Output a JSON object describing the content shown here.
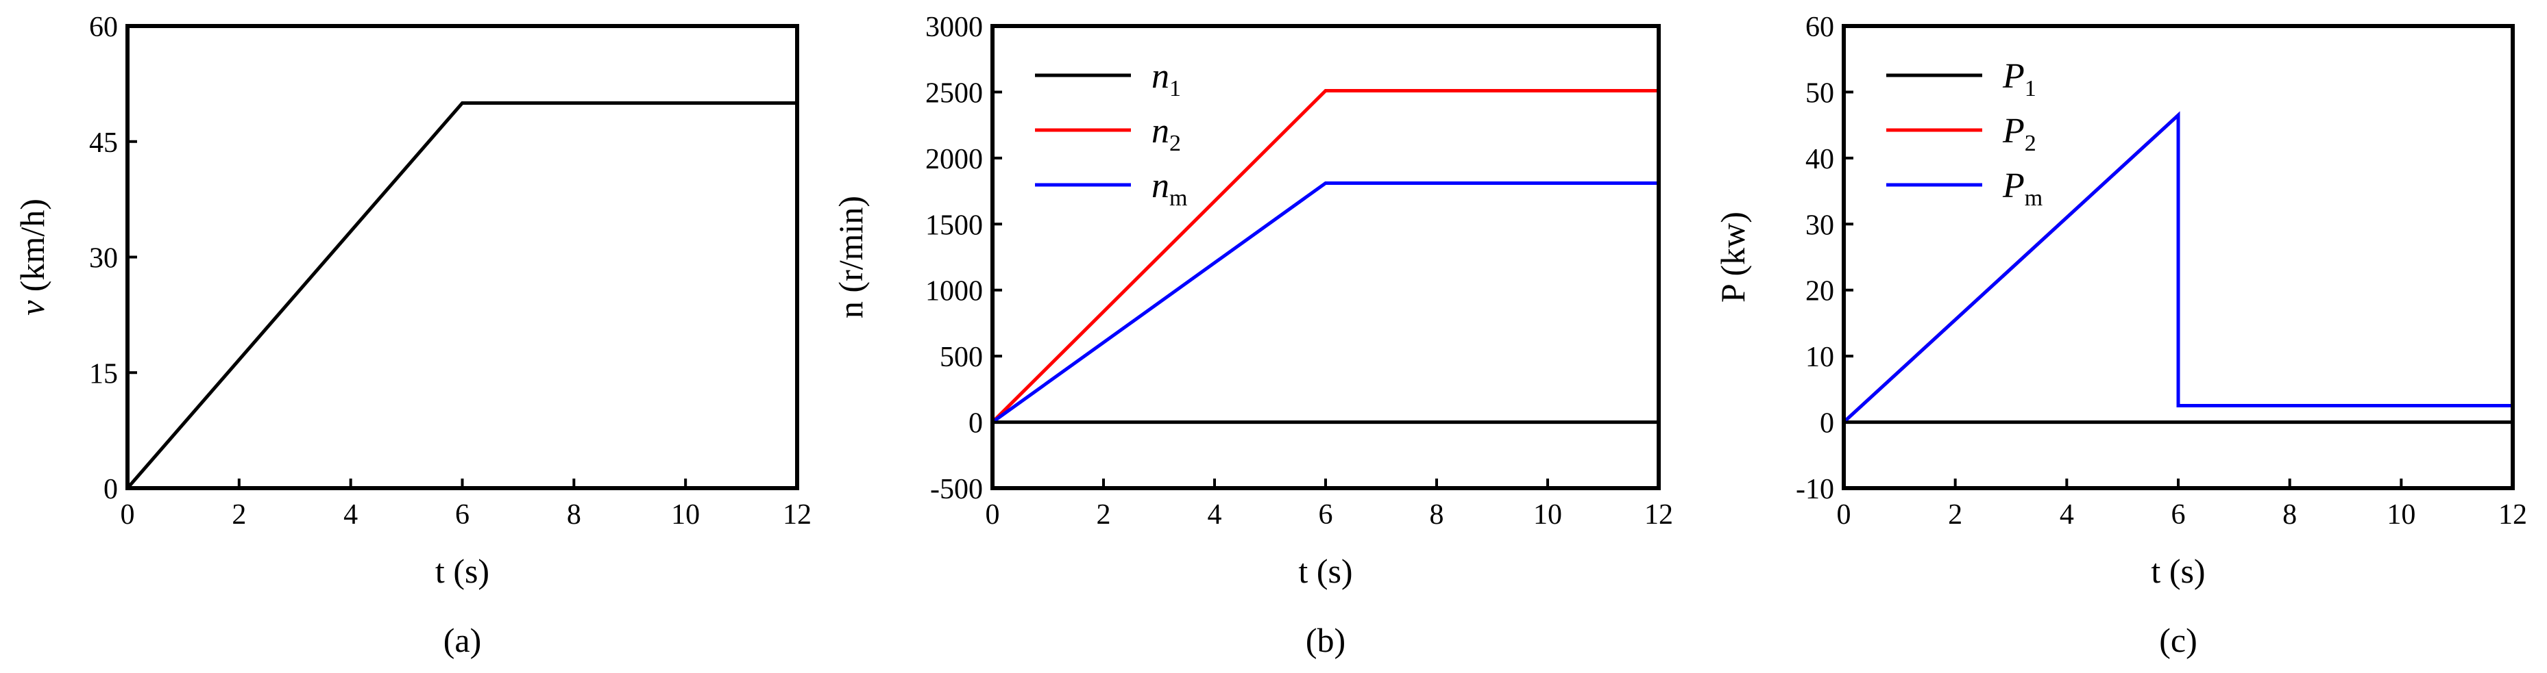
{
  "chart_data": [
    {
      "type": "line",
      "panel_label": "(a)",
      "xlabel": "t (s)",
      "ylabel_var": "v",
      "ylabel_unit": " (km/h)",
      "xlim": [
        0,
        12
      ],
      "ylim": [
        0,
        60
      ],
      "xticks": [
        0,
        2,
        4,
        6,
        8,
        10,
        12
      ],
      "yticks": [
        0,
        15,
        30,
        45,
        60
      ],
      "legend": "none",
      "series": [
        {
          "color": "#000000",
          "x": [
            0,
            6,
            12
          ],
          "y": [
            0,
            50,
            50
          ]
        }
      ]
    },
    {
      "type": "line",
      "panel_label": "(b)",
      "xlabel": "t (s)",
      "ylabel": "n (r/min)",
      "xlim": [
        0,
        12
      ],
      "ylim": [
        -500,
        3000
      ],
      "xticks": [
        0,
        2,
        4,
        6,
        8,
        10,
        12
      ],
      "yticks": [
        -500,
        0,
        500,
        1000,
        1500,
        2000,
        2500,
        3000
      ],
      "legend": "top-left",
      "series": [
        {
          "name": "n",
          "sub": "1",
          "color": "#000000",
          "x": [
            0,
            12
          ],
          "y": [
            0,
            0
          ]
        },
        {
          "name": "n",
          "sub": "2",
          "color": "#ff0000",
          "x": [
            0,
            6,
            12
          ],
          "y": [
            0,
            2510,
            2510
          ]
        },
        {
          "name": "n",
          "sub": "m",
          "color": "#0000ff",
          "x": [
            0,
            6,
            12
          ],
          "y": [
            0,
            1810,
            1810
          ]
        }
      ]
    },
    {
      "type": "line",
      "panel_label": "(c)",
      "xlabel": "t (s)",
      "ylabel": "P (kw)",
      "xlim": [
        0,
        12
      ],
      "ylim": [
        -10,
        60
      ],
      "xticks": [
        0,
        2,
        4,
        6,
        8,
        10,
        12
      ],
      "yticks": [
        -10,
        0,
        10,
        20,
        30,
        40,
        50,
        60
      ],
      "legend": "top-left",
      "series": [
        {
          "name": "P",
          "sub": "1",
          "color": "#000000",
          "x": [
            0,
            12
          ],
          "y": [
            0,
            0
          ]
        },
        {
          "name": "P",
          "sub": "2",
          "color": "#ff0000",
          "x": [
            0,
            6,
            6,
            12
          ],
          "y": [
            0,
            46.5,
            2.5,
            2.5
          ]
        },
        {
          "name": "P",
          "sub": "m",
          "color": "#0000ff",
          "x": [
            0,
            6,
            6,
            12
          ],
          "y": [
            0,
            46.5,
            2.5,
            2.5
          ]
        }
      ]
    }
  ]
}
